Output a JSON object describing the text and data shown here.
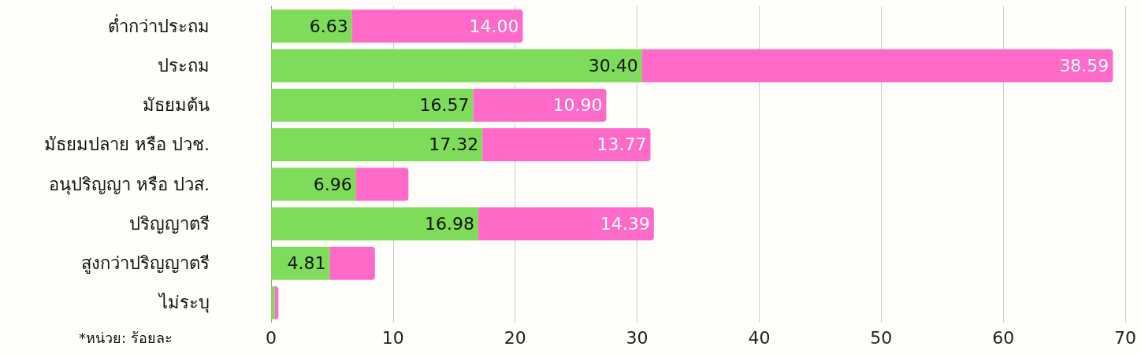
{
  "chart_data": {
    "type": "bar",
    "orientation": "horizontal",
    "stacked": true,
    "categories": [
      "ต่ำกว่าประถม",
      "ประถม",
      "มัธยมต้น",
      "มัธยมปลาย หรือ ปวช.",
      "อนุปริญญา หรือ ปวส.",
      "ปริญญาตรี",
      "สูงกว่าปริญญาตรี",
      "ไม่ระบุ"
    ],
    "series": [
      {
        "color": "#7fdc5a",
        "values": [
          6.63,
          30.4,
          16.57,
          17.32,
          6.96,
          16.98,
          4.81,
          0.3
        ],
        "value_labels": [
          "6.63",
          "30.40",
          "16.57",
          "17.32",
          "6.96",
          "16.98",
          "4.81",
          null
        ]
      },
      {
        "color": "#ff69c8",
        "values": [
          14.0,
          38.59,
          10.9,
          13.77,
          4.3,
          14.39,
          3.7,
          0.3
        ],
        "value_labels": [
          "14.00",
          "38.59",
          "10.90",
          "13.77",
          null,
          "14.39",
          null,
          null
        ]
      }
    ],
    "xlim": [
      0,
      70
    ],
    "xticks": [
      0,
      10,
      20,
      30,
      40,
      50,
      60,
      70
    ],
    "grid": "x",
    "annotations": [
      "*หน่วย: ร้อยละ"
    ]
  }
}
